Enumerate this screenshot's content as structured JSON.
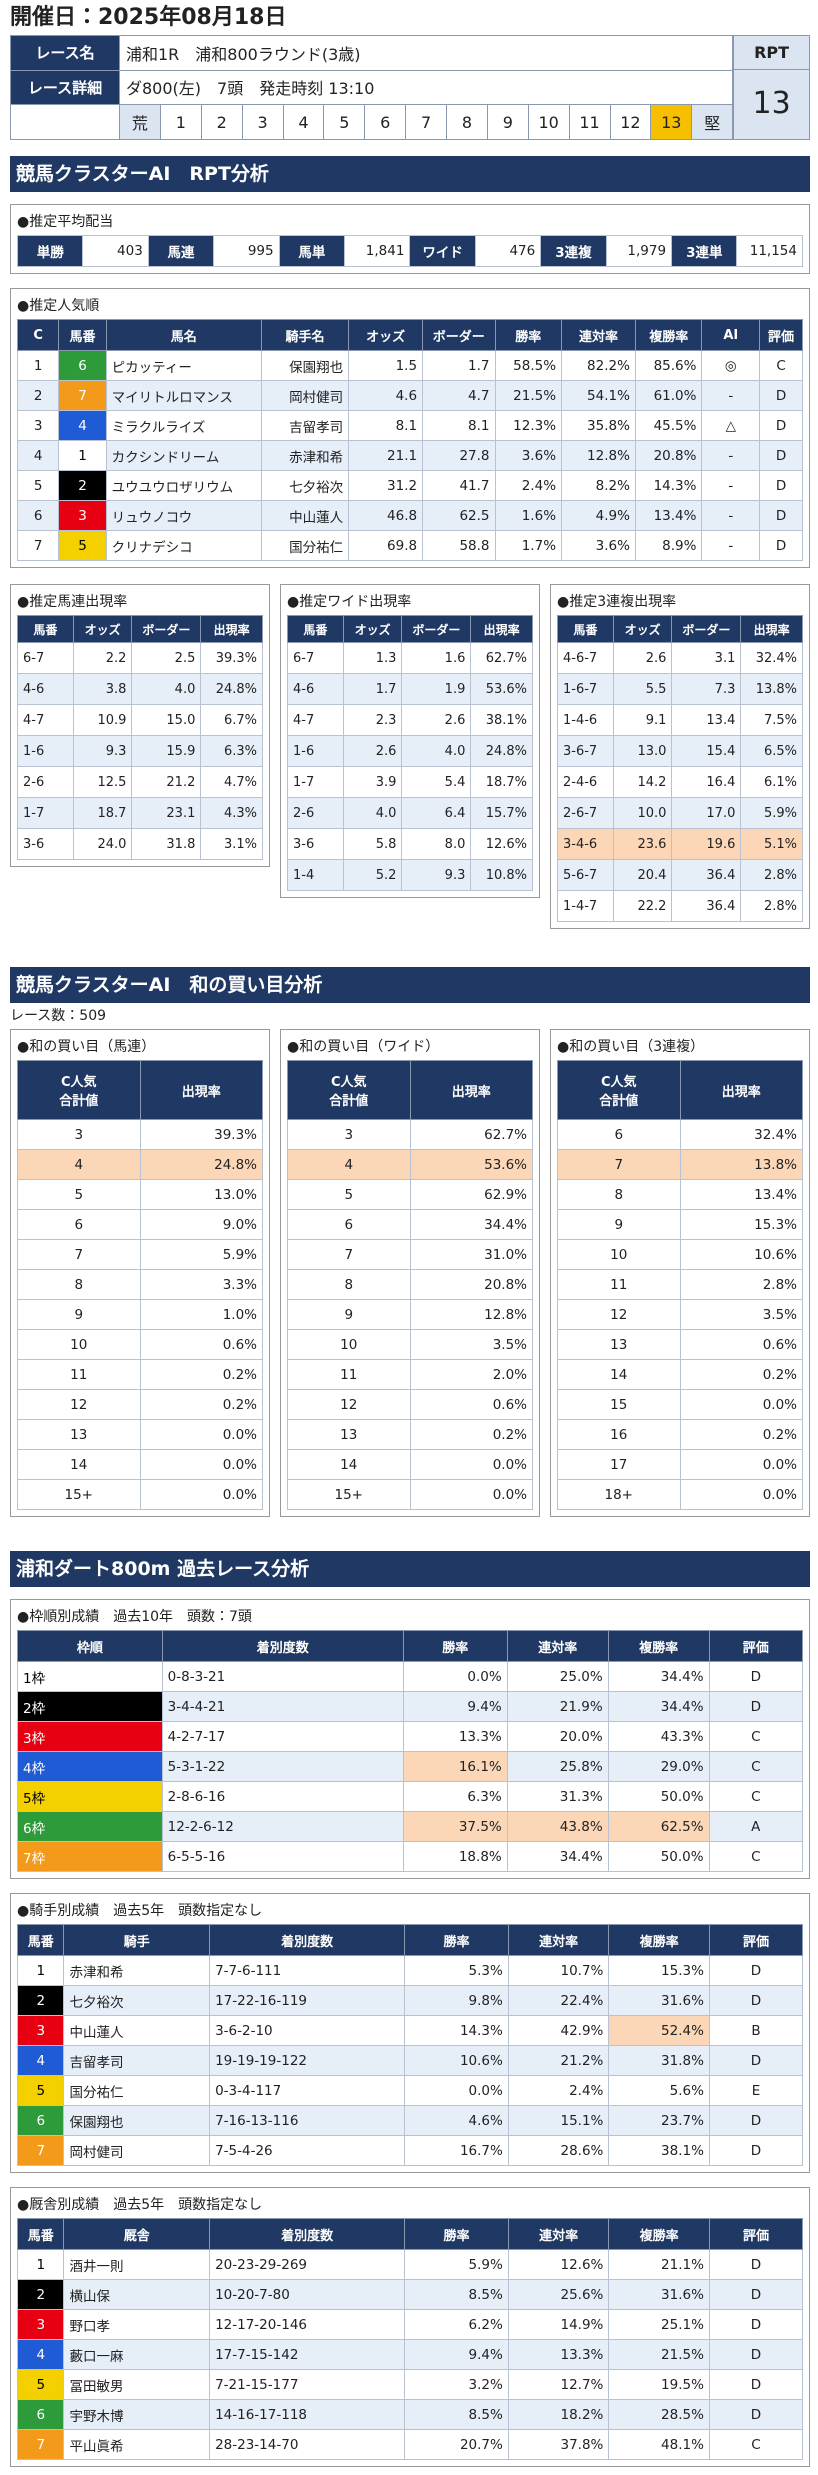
{
  "header": {
    "date": "開催日：2025年08月18日",
    "race_name_label": "レース名",
    "race_name": "浦和1R　浦和800ラウンド(3歳)",
    "race_detail_label": "レース詳細",
    "race_detail": "ダ800(左)　7頭　発走時刻 13:10",
    "rpt_label": "RPT",
    "rpt_scale": [
      "荒",
      "1",
      "2",
      "3",
      "4",
      "5",
      "6",
      "7",
      "8",
      "9",
      "10",
      "11",
      "12",
      "13",
      "堅"
    ],
    "rpt_box_label": "RPT",
    "rpt_value": "13"
  },
  "rpt_section": {
    "title": "競馬クラスターAI　RPT分析",
    "avg_payout": {
      "title": "●推定平均配当",
      "items": [
        {
          "label": "単勝",
          "value": "403"
        },
        {
          "label": "馬連",
          "value": "995"
        },
        {
          "label": "馬単",
          "value": "1,841"
        },
        {
          "label": "ワイド",
          "value": "476"
        },
        {
          "label": "3連複",
          "value": "1,979"
        },
        {
          "label": "3連単",
          "value": "11,154"
        }
      ]
    },
    "popularity": {
      "title": "●推定人気順",
      "columns": [
        "C",
        "馬番",
        "馬名",
        "騎手名",
        "オッズ",
        "ボーダー",
        "勝率",
        "連対率",
        "複勝率",
        "AI",
        "評価"
      ],
      "rows": [
        [
          "1",
          "6",
          "ピカッティー",
          "保園翔也",
          "1.5",
          "1.7",
          "58.5%",
          "82.2%",
          "85.6%",
          "◎",
          "C"
        ],
        [
          "2",
          "7",
          "マイリトルロマンス",
          "岡村健司",
          "4.6",
          "4.7",
          "21.5%",
          "54.1%",
          "61.0%",
          "-",
          "D"
        ],
        [
          "3",
          "4",
          "ミラクルライズ",
          "吉留孝司",
          "8.1",
          "8.1",
          "12.3%",
          "35.8%",
          "45.5%",
          "△",
          "D"
        ],
        [
          "4",
          "1",
          "カクシンドリーム",
          "赤津和希",
          "21.1",
          "27.8",
          "3.6%",
          "12.8%",
          "20.8%",
          "-",
          "D"
        ],
        [
          "5",
          "2",
          "ユウユウロザリウム",
          "七夕裕次",
          "31.2",
          "41.7",
          "2.4%",
          "8.2%",
          "14.3%",
          "-",
          "D"
        ],
        [
          "6",
          "3",
          "リュウノコウ",
          "中山蓮人",
          "46.8",
          "62.5",
          "1.6%",
          "4.9%",
          "13.4%",
          "-",
          "D"
        ],
        [
          "7",
          "5",
          "クリナデシコ",
          "国分祐仁",
          "69.8",
          "58.8",
          "1.7%",
          "3.6%",
          "8.9%",
          "-",
          "D"
        ]
      ]
    },
    "tables": [
      {
        "title": "●推定馬連出現率",
        "columns": [
          "馬番",
          "オッズ",
          "ボーダー",
          "出現率"
        ],
        "rows": [
          [
            "6-7",
            "2.2",
            "2.5",
            "39.3%"
          ],
          [
            "4-6",
            "3.8",
            "4.0",
            "24.8%"
          ],
          [
            "4-7",
            "10.9",
            "15.0",
            "6.7%"
          ],
          [
            "1-6",
            "9.3",
            "15.9",
            "6.3%"
          ],
          [
            "2-6",
            "12.5",
            "21.2",
            "4.7%"
          ],
          [
            "1-7",
            "18.7",
            "23.1",
            "4.3%"
          ],
          [
            "3-6",
            "24.0",
            "31.8",
            "3.1%"
          ]
        ]
      },
      {
        "title": "●推定ワイド出現率",
        "columns": [
          "馬番",
          "オッズ",
          "ボーダー",
          "出現率"
        ],
        "rows": [
          [
            "6-7",
            "1.3",
            "1.6",
            "62.7%"
          ],
          [
            "4-6",
            "1.7",
            "1.9",
            "53.6%"
          ],
          [
            "4-7",
            "2.3",
            "2.6",
            "38.1%"
          ],
          [
            "1-6",
            "2.6",
            "4.0",
            "24.8%"
          ],
          [
            "1-7",
            "3.9",
            "5.4",
            "18.7%"
          ],
          [
            "2-6",
            "4.0",
            "6.4",
            "15.7%"
          ],
          [
            "3-6",
            "5.8",
            "8.0",
            "12.6%"
          ],
          [
            "1-4",
            "5.2",
            "9.3",
            "10.8%"
          ]
        ]
      },
      {
        "title": "●推定3連複出現率",
        "columns": [
          "馬番",
          "オッズ",
          "ボーダー",
          "出現率"
        ],
        "rows": [
          [
            "4-6-7",
            "2.6",
            "3.1",
            "32.4%"
          ],
          [
            "1-6-7",
            "5.5",
            "7.3",
            "13.8%"
          ],
          [
            "1-4-6",
            "9.1",
            "13.4",
            "7.5%"
          ],
          [
            "3-6-7",
            "13.0",
            "15.4",
            "6.5%"
          ],
          [
            "2-4-6",
            "14.2",
            "16.4",
            "6.1%"
          ],
          [
            "2-6-7",
            "10.0",
            "17.0",
            "5.9%"
          ],
          [
            "3-4-6",
            "23.6",
            "19.6",
            "5.1%"
          ],
          [
            "5-6-7",
            "20.4",
            "36.4",
            "2.8%"
          ],
          [
            "1-4-7",
            "22.2",
            "36.4",
            "2.8%"
          ]
        ],
        "highlight": [
          [
            6,
            0
          ],
          [
            6,
            1
          ],
          [
            6,
            2
          ],
          [
            6,
            3
          ]
        ]
      }
    ]
  },
  "wa_section": {
    "title": "競馬クラスターAI　和の買い目分析",
    "race_count": "レース数：509",
    "tables": [
      {
        "title": "●和の買い目（馬連）",
        "columns": [
          "C人気\n合計値",
          "出現率"
        ],
        "rows": [
          [
            "3",
            "39.3%"
          ],
          [
            "4",
            "24.8%"
          ],
          [
            "5",
            "13.0%"
          ],
          [
            "6",
            "9.0%"
          ],
          [
            "7",
            "5.9%"
          ],
          [
            "8",
            "3.3%"
          ],
          [
            "9",
            "1.0%"
          ],
          [
            "10",
            "0.6%"
          ],
          [
            "11",
            "0.2%"
          ],
          [
            "12",
            "0.2%"
          ],
          [
            "13",
            "0.0%"
          ],
          [
            "14",
            "0.0%"
          ],
          [
            "15+",
            "0.0%"
          ]
        ],
        "highlight": [
          [
            1,
            0
          ],
          [
            1,
            1
          ]
        ]
      },
      {
        "title": "●和の買い目（ワイド）",
        "columns": [
          "C人気\n合計値",
          "出現率"
        ],
        "rows": [
          [
            "3",
            "62.7%"
          ],
          [
            "4",
            "53.6%"
          ],
          [
            "5",
            "62.9%"
          ],
          [
            "6",
            "34.4%"
          ],
          [
            "7",
            "31.0%"
          ],
          [
            "8",
            "20.8%"
          ],
          [
            "9",
            "12.8%"
          ],
          [
            "10",
            "3.5%"
          ],
          [
            "11",
            "2.0%"
          ],
          [
            "12",
            "0.6%"
          ],
          [
            "13",
            "0.2%"
          ],
          [
            "14",
            "0.0%"
          ],
          [
            "15+",
            "0.0%"
          ]
        ],
        "highlight": [
          [
            1,
            0
          ],
          [
            1,
            1
          ]
        ]
      },
      {
        "title": "●和の買い目（3連複）",
        "columns": [
          "C人気\n合計値",
          "出現率"
        ],
        "rows": [
          [
            "6",
            "32.4%"
          ],
          [
            "7",
            "13.8%"
          ],
          [
            "8",
            "13.4%"
          ],
          [
            "9",
            "15.3%"
          ],
          [
            "10",
            "10.6%"
          ],
          [
            "11",
            "2.8%"
          ],
          [
            "12",
            "3.5%"
          ],
          [
            "13",
            "0.6%"
          ],
          [
            "14",
            "0.2%"
          ],
          [
            "15",
            "0.0%"
          ],
          [
            "16",
            "0.2%"
          ],
          [
            "17",
            "0.0%"
          ],
          [
            "18+",
            "0.0%"
          ]
        ],
        "highlight": [
          [
            1,
            0
          ],
          [
            1,
            1
          ]
        ]
      }
    ]
  },
  "past_section": {
    "title": "浦和ダート800m 過去レース分析",
    "tables": [
      {
        "title": "●枠順別成績　過去10年　頭数：7頭",
        "columns": [
          "枠順",
          "着別度数",
          "勝率",
          "連対率",
          "複勝率",
          "評価"
        ],
        "rows": [
          [
            "1枠",
            "0-8-3-21",
            "0.0%",
            "25.0%",
            "34.4%",
            "D"
          ],
          [
            "2枠",
            "3-4-4-21",
            "9.4%",
            "21.9%",
            "34.4%",
            "D"
          ],
          [
            "3枠",
            "4-2-7-17",
            "13.3%",
            "20.0%",
            "43.3%",
            "C"
          ],
          [
            "4枠",
            "5-3-1-22",
            "16.1%",
            "25.8%",
            "29.0%",
            "C"
          ],
          [
            "5枠",
            "2-8-6-16",
            "6.3%",
            "31.3%",
            "50.0%",
            "C"
          ],
          [
            "6枠",
            "12-2-6-12",
            "37.5%",
            "43.8%",
            "62.5%",
            "A"
          ],
          [
            "7枠",
            "6-5-5-16",
            "18.8%",
            "34.4%",
            "50.0%",
            "C"
          ]
        ],
        "highlight": [
          [
            3,
            2
          ],
          [
            5,
            2
          ],
          [
            5,
            3
          ],
          [
            5,
            4
          ]
        ]
      },
      {
        "title": "●騎手別成績　過去5年　頭数指定なし",
        "columns": [
          "馬番",
          "騎手",
          "着別度数",
          "勝率",
          "連対率",
          "複勝率",
          "評価"
        ],
        "rows": [
          [
            "1",
            "赤津和希",
            "7-7-6-111",
            "5.3%",
            "10.7%",
            "15.3%",
            "D"
          ],
          [
            "2",
            "七夕裕次",
            "17-22-16-119",
            "9.8%",
            "22.4%",
            "31.6%",
            "D"
          ],
          [
            "3",
            "中山蓮人",
            "3-6-2-10",
            "14.3%",
            "42.9%",
            "52.4%",
            "B"
          ],
          [
            "4",
            "吉留孝司",
            "19-19-19-122",
            "10.6%",
            "21.2%",
            "31.8%",
            "D"
          ],
          [
            "5",
            "国分祐仁",
            "0-3-4-117",
            "0.0%",
            "2.4%",
            "5.6%",
            "E"
          ],
          [
            "6",
            "保園翔也",
            "7-16-13-116",
            "4.6%",
            "15.1%",
            "23.7%",
            "D"
          ],
          [
            "7",
            "岡村健司",
            "7-5-4-26",
            "16.7%",
            "28.6%",
            "38.1%",
            "D"
          ]
        ],
        "highlight": [
          [
            2,
            5
          ]
        ]
      },
      {
        "title": "●厩舎別成績　過去5年　頭数指定なし",
        "columns": [
          "馬番",
          "厩舎",
          "着別度数",
          "勝率",
          "連対率",
          "複勝率",
          "評価"
        ],
        "rows": [
          [
            "1",
            "酒井一則",
            "20-23-29-269",
            "5.9%",
            "12.6%",
            "21.1%",
            "D"
          ],
          [
            "2",
            "横山保",
            "10-20-7-80",
            "8.5%",
            "25.6%",
            "31.6%",
            "D"
          ],
          [
            "3",
            "野口孝",
            "12-17-20-146",
            "6.2%",
            "14.9%",
            "25.1%",
            "D"
          ],
          [
            "4",
            "藪口一麻",
            "17-7-15-142",
            "9.4%",
            "13.3%",
            "21.5%",
            "D"
          ],
          [
            "5",
            "冨田敏男",
            "7-21-15-177",
            "3.2%",
            "12.7%",
            "19.5%",
            "D"
          ],
          [
            "6",
            "宇野木博",
            "14-16-17-118",
            "8.5%",
            "18.2%",
            "28.5%",
            "D"
          ],
          [
            "7",
            "平山眞希",
            "28-23-14-70",
            "20.7%",
            "37.8%",
            "48.1%",
            "C"
          ]
        ]
      }
    ]
  }
}
